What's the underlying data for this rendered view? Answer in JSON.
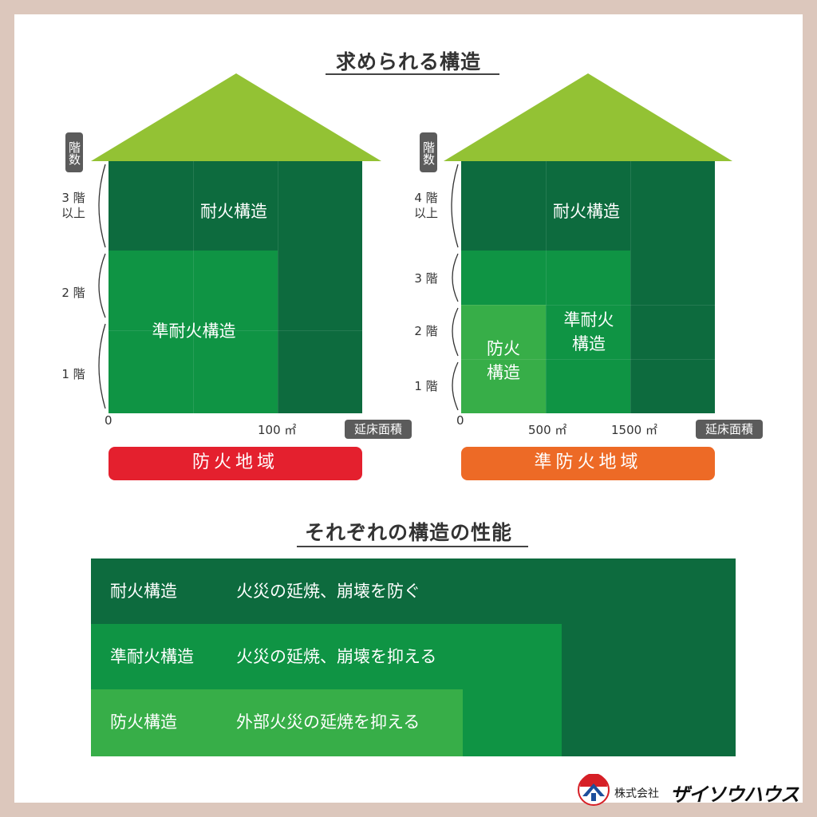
{
  "title_top": "求められる構造",
  "title_bottom": "それぞれの構造の性能",
  "axis": {
    "floors": "階数",
    "floor_area": "延床面積"
  },
  "left": {
    "floors": [
      "3 階\n以上",
      "2 階",
      "1 階"
    ],
    "zones": {
      "fireproof": "耐火構造",
      "semi_fireproof": "準耐火構造"
    },
    "ticks": {
      "zero": "0",
      "t1": "100 ㎡"
    },
    "region": "防火地域"
  },
  "right": {
    "floors": [
      "4 階\n以上",
      "3 階",
      "2 階",
      "1 階"
    ],
    "zones": {
      "fireproof": "耐火構造",
      "semi_fireproof": "準耐火\n構造",
      "fire_prevention": "防火\n構造"
    },
    "ticks": {
      "zero": "0",
      "t1": "500 ㎡",
      "t2": "1500 ㎡"
    },
    "region": "準防火地域"
  },
  "performance": [
    {
      "name": "耐火構造",
      "desc": "火災の延焼、崩壊を防ぐ"
    },
    {
      "name": "準耐火構造",
      "desc": "火災の延焼、崩壊を抑える"
    },
    {
      "name": "防火構造",
      "desc": "外部火災の延焼を抑える"
    }
  ],
  "brand": {
    "prefix": "株式会社",
    "name": "ザイソウハウス"
  },
  "colors": {
    "dark_green": "#0d6b3e",
    "mid_green": "#0f9444",
    "light_green": "#37ae48",
    "roof_green": "#93c234",
    "red": "#e4202e",
    "orange": "#ed6a26"
  }
}
